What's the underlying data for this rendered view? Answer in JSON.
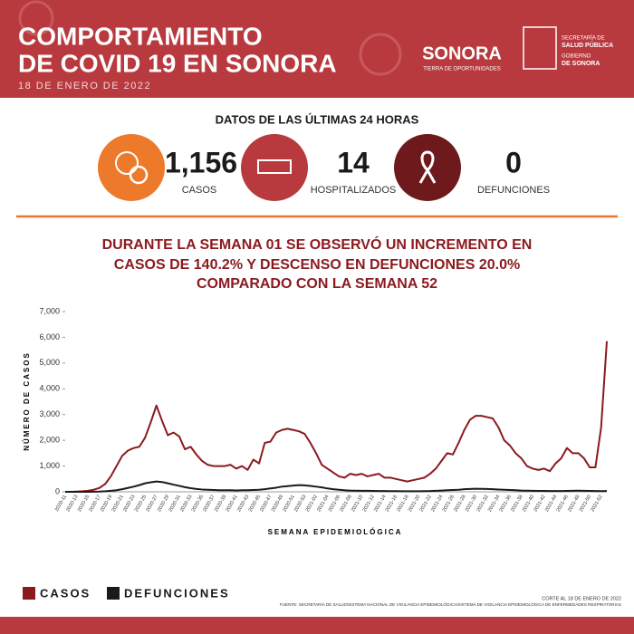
{
  "header": {
    "title_lines": [
      "COMPORTAMIENTO",
      "DE COVID 19 EN SONORA"
    ],
    "date": "18 DE ENERO DE 2022",
    "logo_sonora": "SONORA",
    "logo_tagline": "TIERRA DE OPORTUNIDADES",
    "logo_secretaria": [
      "SECRETARÍA DE",
      "SALUD PÚBLICA"
    ],
    "logo_gobierno": [
      "GOBIERNO",
      "DE SONORA"
    ]
  },
  "stats": {
    "title": "DATOS DE LAS ÚLTIMAS 24 HORAS",
    "items": [
      {
        "value": "1,156",
        "label": "CASOS"
      },
      {
        "value": "14",
        "label": "HOSPITALIZADOS"
      },
      {
        "value": "0",
        "label": "DEFUNCIONES"
      }
    ]
  },
  "headline": [
    "DURANTE LA SEMANA 01 SE OBSERVÓ UN INCREMENTO EN",
    "CASOS DE 140.2% Y DESCENSO EN DEFUNCIONES 20.0%",
    "COMPARADO CON LA SEMANA 52"
  ],
  "chart_data": {
    "type": "line",
    "y_label": "NÚMERO DE CASOS",
    "x_label": "SEMANA EPIDEMIOLÓGICA",
    "categories": [
      "2020-11",
      null,
      "2020-13",
      null,
      "2020-15",
      null,
      "2020-17",
      null,
      "2020-19",
      null,
      "2020-21",
      null,
      "2020-23",
      null,
      "2020-25",
      null,
      "2020-27",
      null,
      "2020-29",
      null,
      "2020-31",
      null,
      "2020-33",
      null,
      "2020-35",
      null,
      "2020-37",
      null,
      "2020-39",
      null,
      "2020-41",
      null,
      "2020-43",
      null,
      "2020-45",
      null,
      "2020-47",
      null,
      "2020-49",
      null,
      "2020-51",
      null,
      "2020-53",
      null,
      "2021-02",
      null,
      "2021-04",
      null,
      "2021-06",
      null,
      "2021-08",
      null,
      "2021-10",
      null,
      "2021-12",
      null,
      "2021-14",
      null,
      "2021-16",
      null,
      "2021-18",
      null,
      "2021-20",
      null,
      "2021-22",
      null,
      "2021-24",
      null,
      "2021-26",
      null,
      "2021-28",
      null,
      "2021-30",
      null,
      "2021-32",
      null,
      "2021-34",
      null,
      "2021-36",
      null,
      "2021-38",
      null,
      "2021-40",
      null,
      "2021-42",
      null,
      "2021-44",
      null,
      "2021-46",
      null,
      "2021-48",
      null,
      "2021-50",
      null,
      "2021-52",
      null
    ],
    "series": [
      {
        "name": "CASOS",
        "color": "#8b1a1f",
        "values": [
          0,
          0,
          10,
          20,
          40,
          80,
          150,
          300,
          600,
          1000,
          1400,
          1600,
          1700,
          1750,
          2100,
          2700,
          3350,
          2750,
          2200,
          2300,
          2150,
          1650,
          1750,
          1450,
          1200,
          1050,
          1000,
          1000,
          1000,
          1050,
          900,
          1000,
          850,
          1250,
          1100,
          1900,
          1950,
          2300,
          2400,
          2450,
          2400,
          2350,
          2250,
          1900,
          1500,
          1050,
          900,
          750,
          600,
          550,
          700,
          650,
          700,
          600,
          650,
          700,
          550,
          550,
          500,
          450,
          400,
          450,
          500,
          550,
          700,
          900,
          1200,
          1500,
          1450,
          1900,
          2400,
          2800,
          2950,
          2950,
          2900,
          2850,
          2500,
          2000,
          1800,
          1500,
          1300,
          1000,
          900,
          850,
          900,
          800,
          1100,
          1300,
          1700,
          1500,
          1500,
          1300,
          950,
          950,
          2500,
          5850
        ]
      },
      {
        "name": "DEFUNCIONES",
        "color": "#1a1a1a",
        "values": [
          0,
          0,
          0,
          0,
          0,
          5,
          10,
          20,
          40,
          60,
          100,
          150,
          200,
          260,
          330,
          370,
          400,
          380,
          330,
          280,
          230,
          180,
          140,
          110,
          90,
          80,
          70,
          60,
          60,
          60,
          55,
          60,
          60,
          70,
          80,
          100,
          130,
          160,
          200,
          220,
          240,
          260,
          250,
          230,
          200,
          170,
          130,
          100,
          80,
          60,
          50,
          45,
          40,
          40,
          35,
          30,
          30,
          25,
          25,
          20,
          20,
          20,
          20,
          25,
          30,
          40,
          50,
          60,
          70,
          80,
          100,
          110,
          120,
          115,
          110,
          100,
          90,
          80,
          70,
          60,
          50,
          45,
          40,
          35,
          35,
          30,
          30,
          30,
          35,
          40,
          45,
          40,
          35,
          30,
          25,
          30
        ]
      }
    ],
    "ylim": [
      0,
      7000
    ],
    "yticks": [
      0,
      {
        "value": 1000,
        "label": "1,000"
      },
      {
        "value": 2000,
        "label": "2,000"
      },
      {
        "value": 3000,
        "label": "3,000"
      },
      {
        "value": 4000,
        "label": "4,000"
      },
      {
        "value": 5000,
        "label": "5,000"
      },
      {
        "value": 6000,
        "label": "6,000"
      },
      {
        "value": 7000,
        "label": "7,000"
      }
    ]
  },
  "footer": {
    "cut": "CORTE AL 18 DE ENERO DE 2022",
    "source": "FUENTE: SECRETARÍA DE SALUD/SISTEMA NACIONAL DE VIGILANCIA EPIDEMIOLÓGICA/SISTEMA DE VIGILANCIA EPIDEMIOLÓGICA DE ENFERMEDADES RESPIRATORIAS"
  }
}
